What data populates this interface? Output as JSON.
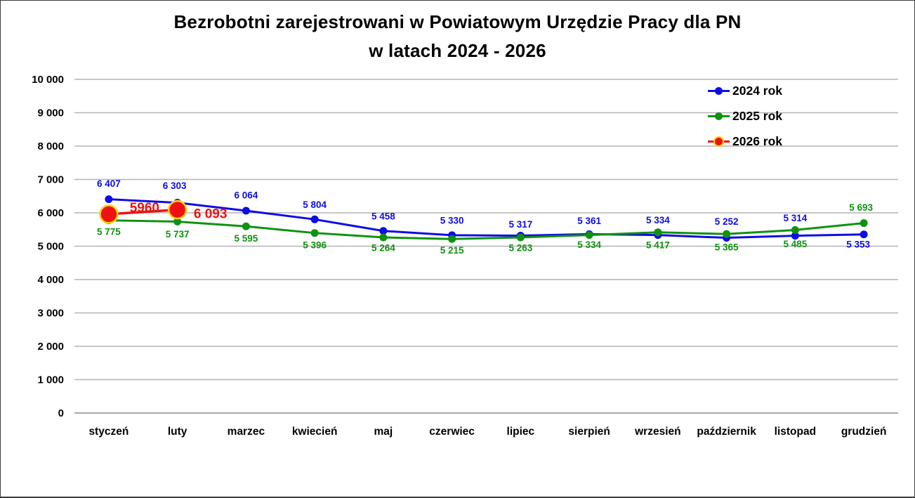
{
  "title": {
    "line1": "Bezrobotni zarejestrowani w Powiatowym Urzędzie Pracy dla PN",
    "line2": "w latach 2024 - 2026"
  },
  "colors": {
    "series_2024": "#0d0de6",
    "series_2025": "#109210",
    "series_2026": "#ee1111",
    "marker_2026_ring": "#ffd700",
    "gridline": "#b4b4b4",
    "axis_line": "#8c8c8c",
    "text": "#000000",
    "background": "#ffffff"
  },
  "chart_data": {
    "type": "line",
    "title": "Bezrobotni zarejestrowani w Powiatowym Urzędzie Pracy dla PN w latach 2024 - 2026",
    "categories": [
      "styczeń",
      "luty",
      "marzec",
      "kwiecień",
      "maj",
      "czerwiec",
      "lipiec",
      "sierpień",
      "wrzesień",
      "październik",
      "listopad",
      "grudzień"
    ],
    "xlabel": "",
    "ylabel": "",
    "ylim": [
      0,
      10000
    ],
    "ytick_step": 1000,
    "ytick_labels": [
      "0",
      "1 000",
      "2 000",
      "3 000",
      "4 000",
      "5 000",
      "6 000",
      "7 000",
      "8 000",
      "9 000",
      "10 000"
    ],
    "grid": true,
    "legend_position": "top-right",
    "series": [
      {
        "name": "2024 rok",
        "color": "#0d0de6",
        "line_width": 3,
        "marker": {
          "radius": 5.5,
          "fill": "#0d0de6",
          "stroke": "none",
          "stroke_width": 0
        },
        "values": [
          6407,
          6303,
          6064,
          5804,
          5458,
          5330,
          5317,
          5361,
          5334,
          5252,
          5314,
          5353
        ],
        "labels": [
          "6 407",
          "6 303",
          "6 064",
          "5 804",
          "5 458",
          "5 330",
          "5 317",
          "5 361",
          "5 334",
          "5 252",
          "5 314",
          "5 353"
        ],
        "label_size": 13.5,
        "label_dx": [
          0,
          -4,
          0,
          0,
          0,
          0,
          0,
          0,
          0,
          0,
          0,
          -8
        ],
        "label_dy": [
          -21,
          -23,
          -21,
          -20,
          -20,
          -20,
          -15,
          -18,
          -20,
          -22,
          -24,
          15
        ]
      },
      {
        "name": "2025 rok",
        "color": "#109210",
        "line_width": 3,
        "marker": {
          "radius": 5.5,
          "fill": "#109210",
          "stroke": "none",
          "stroke_width": 0
        },
        "values": [
          5775,
          5737,
          5595,
          5396,
          5264,
          5215,
          5263,
          5334,
          5417,
          5365,
          5485,
          5693
        ],
        "labels": [
          "5 775",
          "5 737",
          "5 595",
          "5 396",
          "5 264",
          "5 215",
          "5 263",
          "5 334",
          "5 417",
          "5 365",
          "5 485",
          "5 693"
        ],
        "label_size": 13.5,
        "label_dx": [
          0,
          0,
          0,
          0,
          0,
          0,
          0,
          0,
          0,
          0,
          0,
          -4
        ],
        "label_dy": [
          17,
          19,
          18,
          18,
          16,
          17,
          16,
          15,
          19,
          20,
          21,
          -21
        ]
      },
      {
        "name": "2026 rok",
        "color": "#ee1111",
        "line_width": 3.5,
        "marker": {
          "radius": 12.5,
          "fill": "#ee1111",
          "stroke": "#ffd700",
          "stroke_width": 2.5
        },
        "values": [
          5960,
          6093,
          null,
          null,
          null,
          null,
          null,
          null,
          null,
          null,
          null,
          null
        ],
        "labels": [
          "5960",
          "6 093",
          "",
          "",
          "",
          "",
          "",
          "",
          "",
          "",
          "",
          ""
        ],
        "label_size": 19,
        "label_dx": [
          51,
          47
        ],
        "label_dy": [
          -8,
          7
        ]
      }
    ]
  }
}
